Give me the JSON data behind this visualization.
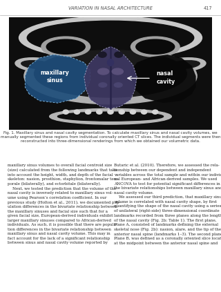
{
  "page_bg": "#ffffff",
  "header_text": "VARIATION IN NASAL ARCHITECTURE",
  "page_num": "417",
  "header_fontsize": 4.8,
  "ct_image_bg": "#111111",
  "maxillary_label": "maxillary\nsinus",
  "nasal_label": "nasal\ncavity",
  "caption_text": "Fig. 1. Maxillary sinus and nasal cavity segmentation. To calculate maxillary sinus and nasal cavity volumes, we manually segmented these regions from individual coronally oriented CT slices. The individual segments were then reconstructed into three-dimensional renderings from which we obtained our volumetric data.",
  "body_left_lines": [
    "maxillary sinus volumes to overall facial centroid size",
    "(size) calculated from the following landmarks that take",
    "into account the height, width, and depth of the facial",
    "skeleton: nasion, prosthion, staphylion, frontomalar tem-",
    "porale (bilaterally), and ectorbitale (bilaterally).",
    "    Next, we tested the prediction that the volume of the",
    "nasal cavity is inversely related to maxillary sinus vol-",
    "ume using Pearson’s correlation coefficient. In our",
    "previous study (Holton et al., 2011), we documented pop-",
    "ulation differences in the bivariate relationship between",
    "the maxillary sinuses and facial size such that for a",
    "given facial size, European-derived individuals exhibit",
    "larger maxillary sinuses compared to African-derived",
    "individuals. As such, it is possible that there are popula-",
    "tion differences in the bivariate relationship between",
    "maxillary sinus and nasal cavity volume. This may in",
    "fact account for the lack of a significant relationship",
    "between sinus and nasal cavity volume reported by"
  ],
  "body_right_lines": [
    "Butaric et al. (2010). Therefore, we assessed the rela-",
    "tionship between our dependent and independent",
    "variables across the total sample and within our individ-",
    "ual European- and African-derived samples. We used",
    "ANCOVA to test for potential significant differences in",
    "the bivariate relationships between maxillary sinus and",
    "nasal cavity volume.",
    "    We assessed our third prediction, that maxillary sinus",
    "volume is correlated with nasal cavity shape, by first",
    "quantifying the shape of the nasal cavity using a series",
    "of unilateral (right-side) three-dimensional coordinate",
    "landmarks recorded from three planes along the length",
    "of the nasal cavity (Fig. 2b; Table 1). The first plane,",
    "Plane A, consisted of landmarks defining the external",
    "skeletal nose (Fig. 2b): nasion, alare, and the tip of the",
    "anterior nasal spine (landmarks 1–3). The second plane,",
    "Plane B, was defined as a coronally oriented slice located",
    "at the midpoint between the anterior nasal spine and"
  ]
}
